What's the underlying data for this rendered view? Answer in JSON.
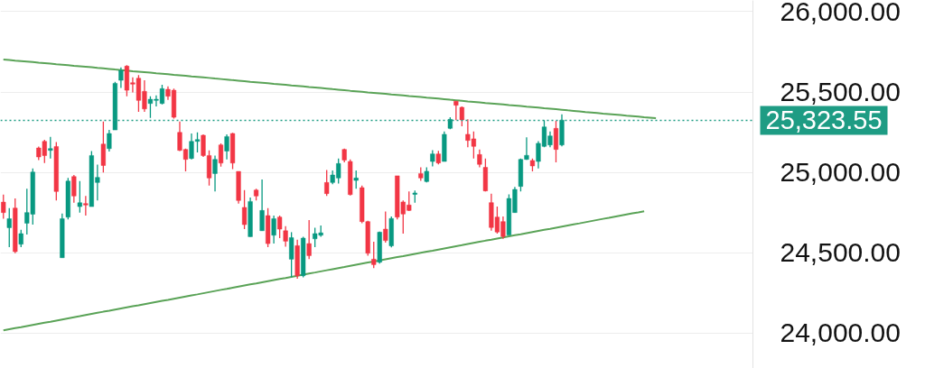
{
  "chart_data": {
    "type": "candlestick",
    "categories": [
      null,
      null,
      null,
      null,
      null,
      null,
      null,
      null,
      null,
      null,
      null,
      null,
      null,
      null,
      null,
      null,
      null,
      null,
      null,
      null,
      null,
      null,
      null,
      null,
      null,
      null,
      null,
      null,
      null,
      null,
      null,
      null,
      null,
      null,
      null,
      null,
      null,
      null,
      null,
      null,
      null,
      null,
      null,
      null,
      null,
      null,
      null,
      null,
      null,
      null,
      null,
      null,
      null,
      null,
      null,
      null,
      null,
      null,
      null,
      null,
      null,
      null,
      null,
      null,
      null,
      null,
      null,
      null,
      null,
      null,
      null,
      null,
      null,
      null,
      null,
      null,
      null,
      null,
      null,
      null,
      null,
      null,
      null,
      null,
      null,
      null,
      null,
      null,
      null,
      null,
      null,
      null,
      null,
      null,
      null,
      null,
      null,
      null,
      null,
      null,
      null,
      null,
      null,
      null,
      null,
      null,
      null,
      null,
      null,
      null,
      null,
      null,
      null,
      null,
      null,
      null,
      null,
      null,
      null,
      null,
      null,
      null,
      null,
      null,
      null,
      null,
      null,
      null
    ],
    "ohlc": [
      [
        24815,
        24862,
        24712,
        24750
      ],
      [
        24656,
        24778,
        24535,
        24712
      ],
      [
        24778,
        24838,
        24497,
        24507
      ],
      [
        24553,
        24643,
        24535,
        24619
      ],
      [
        24684,
        24899,
        24613,
        24750
      ],
      [
        24740,
        25025,
        24675,
        25002
      ],
      [
        25152,
        25161,
        25077,
        25096
      ],
      [
        25193,
        25203,
        25058,
        25105
      ],
      [
        25137,
        25221,
        25087,
        25148
      ],
      [
        25161,
        25189,
        24825,
        24881
      ],
      [
        24469,
        24744,
        24469,
        24712
      ],
      [
        24722,
        24965,
        24707,
        24946
      ],
      [
        24974,
        24984,
        24811,
        24853
      ],
      [
        24787,
        24946,
        24750,
        24811
      ],
      [
        24806,
        24853,
        24731,
        24797
      ],
      [
        24787,
        25133,
        24787,
        25105
      ],
      [
        24937,
        25049,
        24825,
        24969
      ],
      [
        25176,
        25317,
        24999,
        25043
      ],
      [
        25148,
        25264,
        25130,
        25242
      ],
      [
        25264,
        25564,
        25264,
        25554
      ],
      [
        25573,
        25653,
        25526,
        25635
      ],
      [
        25661,
        25667,
        25474,
        25511
      ],
      [
        25558,
        25592,
        25498,
        25549
      ],
      [
        25586,
        25605,
        25377,
        25448
      ],
      [
        25504,
        25573,
        25377,
        25395
      ],
      [
        25429,
        25474,
        25339,
        25455
      ],
      [
        25448,
        25479,
        25410,
        25455
      ],
      [
        25429,
        25545,
        25423,
        25521
      ],
      [
        25517,
        25536,
        25451,
        25474
      ],
      [
        25511,
        25522,
        25335,
        25343
      ],
      [
        25249,
        25317,
        25133,
        25137
      ],
      [
        25143,
        25148,
        25006,
        25081
      ],
      [
        25087,
        25242,
        25081,
        25193
      ],
      [
        25193,
        25249,
        25124,
        25204
      ],
      [
        25231,
        25236,
        25096,
        25105
      ],
      [
        25105,
        25137,
        24918,
        24965
      ],
      [
        24993,
        25105,
        24881,
        25081
      ],
      [
        25171,
        25180,
        25036,
        25058
      ],
      [
        25133,
        25236,
        25081,
        25223
      ],
      [
        25242,
        25246,
        25021,
        25058
      ],
      [
        25006,
        25006,
        24806,
        24825
      ],
      [
        24782,
        24890,
        24647,
        24675
      ],
      [
        24600,
        24843,
        24600,
        24819
      ],
      [
        24890,
        24899,
        24825,
        24853
      ],
      [
        24637,
        24956,
        24637,
        24763
      ],
      [
        24731,
        24778,
        24535,
        24557
      ],
      [
        24609,
        24731,
        24557,
        24712
      ],
      [
        24722,
        24731,
        24591,
        24647
      ],
      [
        24637,
        24666,
        24538,
        24572
      ],
      [
        24460,
        24628,
        24347,
        24594
      ],
      [
        24544,
        24581,
        24338,
        24357
      ],
      [
        24357,
        24600,
        24347,
        24591
      ],
      [
        24557,
        24703,
        24460,
        24482
      ],
      [
        24587,
        24656,
        24535,
        24619
      ],
      [
        24609,
        24669,
        24600,
        24624
      ],
      [
        24937,
        25015,
        24853,
        24868
      ],
      [
        24937,
        25012,
        24927,
        24984
      ],
      [
        24965,
        25087,
        24931,
        25055
      ],
      [
        25143,
        25148,
        25062,
        25077
      ],
      [
        25068,
        25081,
        24856,
        24862
      ],
      [
        24950,
        25012,
        24899,
        24965
      ],
      [
        24905,
        24918,
        24684,
        24694
      ],
      [
        24694,
        24699,
        24482,
        24497
      ],
      [
        24460,
        24568,
        24404,
        24426
      ],
      [
        24441,
        24632,
        24432,
        24628
      ],
      [
        24647,
        24756,
        24563,
        24576
      ],
      [
        24543,
        24726,
        24534,
        24713
      ],
      [
        24979,
        24979,
        24707,
        24722
      ],
      [
        24816,
        24825,
        24619,
        24741
      ],
      [
        24797,
        24881,
        24760,
        24763
      ],
      [
        24863,
        24887,
        24812,
        24872
      ],
      [
        24993,
        25031,
        24947,
        24965
      ],
      [
        24943,
        25031,
        24937,
        25007
      ],
      [
        25068,
        25138,
        25037,
        25115
      ],
      [
        25115,
        25134,
        25050,
        25059
      ],
      [
        25068,
        25255,
        25068,
        25237
      ],
      [
        25274,
        25343,
        25269,
        25330
      ],
      [
        25443,
        25443,
        25325,
        25418
      ],
      [
        25405,
        25411,
        25287,
        25327
      ],
      [
        25237,
        25330,
        25156,
        25199
      ],
      [
        25209,
        25255,
        25087,
        25162
      ],
      [
        25111,
        25143,
        25031,
        25050
      ],
      [
        25031,
        25087,
        24881,
        24885
      ],
      [
        24812,
        24868,
        24638,
        24657
      ],
      [
        24722,
        24788,
        24619,
        24629
      ],
      [
        24694,
        24726,
        24587,
        24601
      ],
      [
        24610,
        24863,
        24610,
        24838
      ],
      [
        24750,
        24909,
        24750,
        24894
      ],
      [
        24913,
        25087,
        24881,
        25081
      ],
      [
        25081,
        25218,
        25078,
        25106
      ],
      [
        25074,
        25087,
        25007,
        25040
      ],
      [
        25068,
        25194,
        25025,
        25181
      ],
      [
        25162,
        25325,
        25156,
        25283
      ],
      [
        25171,
        25255,
        25156,
        25227
      ],
      [
        25274,
        25321,
        25063,
        25143
      ],
      [
        25171,
        25362,
        25162,
        25325
      ],
      null,
      null,
      null,
      null,
      null,
      null,
      null,
      null,
      null,
      null,
      null,
      null,
      null,
      null,
      null,
      null,
      null,
      null,
      null,
      null,
      null,
      null,
      null,
      null,
      null,
      null,
      null,
      null,
      null,
      null,
      null,
      null
    ],
    "colors": [
      "#f23645",
      "#089981",
      "#f23645",
      "#089981",
      "#089981",
      "#089981",
      "#f23645",
      "#f23645",
      "#089981",
      "#f23645",
      "#089981",
      "#089981",
      "#f23645",
      "#089981",
      "#f23645",
      "#089981",
      "#089981",
      "#f23645",
      "#089981",
      "#089981",
      "#089981",
      "#f23645",
      "#f23645",
      "#f23645",
      "#f23645",
      "#089981",
      "#089981",
      "#089981",
      "#f23645",
      "#f23645",
      "#f23645",
      "#f23645",
      "#089981",
      "#089981",
      "#f23645",
      "#f23645",
      "#089981",
      "#f23645",
      "#089981",
      "#f23645",
      "#f23645",
      "#f23645",
      "#089981",
      "#f23645",
      "#089981",
      "#f23645",
      "#089981",
      "#f23645",
      "#f23645",
      "#089981",
      "#f23645",
      "#089981",
      "#f23645",
      "#089981",
      "#089981",
      "#f23645",
      "#089981",
      "#089981",
      "#f23645",
      "#f23645",
      "#089981",
      "#f23645",
      "#f23645",
      "#f23645",
      "#089981",
      "#f23645",
      "#089981",
      "#f23645",
      "#f23645",
      "#f23645",
      "#089981",
      "#f23645",
      "#089981",
      "#089981",
      "#f23645",
      "#089981",
      "#089981",
      "#f23645",
      "#f23645",
      "#f23645",
      "#f23645",
      "#f23645",
      "#f23645",
      "#f23645",
      "#f23645",
      "#f23645",
      "#089981",
      "#089981",
      "#089981",
      "#089981",
      "#f23645",
      "#089981",
      "#089981",
      "#089981",
      "#f23645",
      "#089981",
      null,
      null,
      null,
      null,
      null,
      null,
      null,
      null,
      null,
      null,
      null,
      null,
      null,
      null,
      null,
      null,
      null,
      null,
      null,
      null,
      null,
      null,
      null,
      null,
      null,
      null,
      null,
      null,
      null,
      null,
      null,
      null
    ],
    "series": [
      {
        "type": "line",
        "color": "#5aa357",
        "values": [
          25703,
          25700,
          25696,
          25693,
          25690,
          25687,
          25683,
          25680,
          25677,
          25673,
          25670,
          25667,
          25663,
          25660,
          25657,
          25654,
          25650,
          25647,
          25644,
          25640,
          25637,
          25634,
          25630,
          25627,
          25624,
          25621,
          25617,
          25614,
          25611,
          25607,
          25604,
          25601,
          25597,
          25594,
          25591,
          25588,
          25584,
          25581,
          25578,
          25574,
          25571,
          25568,
          25564,
          25561,
          25558,
          25555,
          25551,
          25548,
          25545,
          25541,
          25538,
          25535,
          25531,
          25528,
          25525,
          25522,
          25518,
          25515,
          25512,
          25508,
          25505,
          25502,
          25498,
          25495,
          25492,
          25489,
          25485,
          25482,
          25479,
          25475,
          25472,
          25469,
          25465,
          25462,
          25459,
          25456,
          25452,
          25449,
          25446,
          25442,
          25439,
          25436,
          25432,
          25429,
          25426,
          25423,
          25419,
          25416,
          25413,
          25409,
          25406,
          25403,
          25399,
          25396,
          25393,
          25390,
          25386,
          25383,
          25380,
          25376,
          25373,
          25370,
          25366,
          25363,
          25360,
          25357,
          25353,
          25350,
          25347,
          25343,
          25340,
          25337,
          null,
          null,
          null,
          null,
          null,
          null,
          null,
          null,
          null,
          null,
          null,
          null,
          null,
          null,
          null,
          null
        ]
      },
      {
        "type": "line",
        "color": "#5aa357",
        "values": [
          24017,
          24024,
          24031,
          24037,
          24044,
          24051,
          24058,
          24065,
          24071,
          24078,
          24085,
          24092,
          24099,
          24105,
          24112,
          24119,
          24126,
          24133,
          24139,
          24146,
          24153,
          24160,
          24167,
          24173,
          24180,
          24187,
          24194,
          24201,
          24207,
          24214,
          24221,
          24228,
          24235,
          24241,
          24248,
          24255,
          24262,
          24269,
          24275,
          24282,
          24289,
          24296,
          24303,
          24309,
          24316,
          24323,
          24330,
          24337,
          24343,
          24350,
          24357,
          24364,
          24371,
          24377,
          24384,
          24391,
          24398,
          24405,
          24411,
          24418,
          24425,
          24432,
          24439,
          24445,
          24452,
          24459,
          24466,
          24473,
          24479,
          24486,
          24493,
          24500,
          24507,
          24513,
          24520,
          24527,
          24534,
          24541,
          24547,
          24554,
          24561,
          24568,
          24575,
          24581,
          24588,
          24595,
          24602,
          24609,
          24615,
          24622,
          24629,
          24636,
          24643,
          24649,
          24656,
          24663,
          24670,
          24677,
          24683,
          24690,
          24697,
          24704,
          24711,
          24717,
          24724,
          24731,
          24738,
          24745,
          24751,
          24758,
          null,
          null,
          null,
          null,
          null,
          null,
          null,
          null,
          null,
          null,
          null,
          null,
          null,
          null,
          null,
          null,
          null,
          null
        ]
      }
    ],
    "ref_lines": [
      {
        "axis": "y",
        "value": 25323.55,
        "label": "25,323.55",
        "color": "#1e9c84",
        "line_style": "dotted"
      }
    ],
    "ylim": [
      23780,
      26070
    ],
    "yticks": [
      {
        "value": 24000,
        "label": "24,000.00"
      },
      {
        "value": 24500,
        "label": "24,500.00"
      },
      {
        "value": 25000,
        "label": "25,000.00"
      },
      {
        "value": 25500,
        "label": "25,500.00"
      },
      {
        "value": 26000,
        "label": "26,000.00"
      }
    ],
    "grid": "y",
    "tick_labels": "y"
  }
}
